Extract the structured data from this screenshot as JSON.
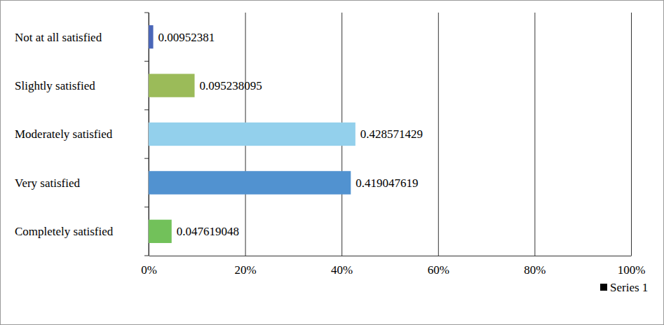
{
  "chart_data": {
    "type": "bar",
    "orientation": "horizontal",
    "categories": [
      "Not at all satisfied",
      "Slightly satisfied",
      "Moderately satisfied",
      "Very satisfied",
      "Completely satisfied"
    ],
    "series": [
      {
        "name": "Series 1",
        "color": "#000000",
        "values": [
          0.00952381,
          0.095238095,
          0.428571429,
          0.419047619,
          0.047619048
        ],
        "colors": [
          "#4a66b8",
          "#9bbb59",
          "#93d0ec",
          "#5192d0",
          "#72c15a"
        ]
      }
    ],
    "xlim": [
      0,
      1
    ],
    "xticks": [
      {
        "value": 0,
        "label": "0%"
      },
      {
        "value": 0.2,
        "label": "20%"
      },
      {
        "value": 0.4,
        "label": "40%"
      },
      {
        "value": 0.6,
        "label": "60%"
      },
      {
        "value": 0.8,
        "label": "80%"
      },
      {
        "value": 1,
        "label": "100%"
      }
    ],
    "grid": true,
    "data_labels": true,
    "legend": "bottom-right"
  }
}
